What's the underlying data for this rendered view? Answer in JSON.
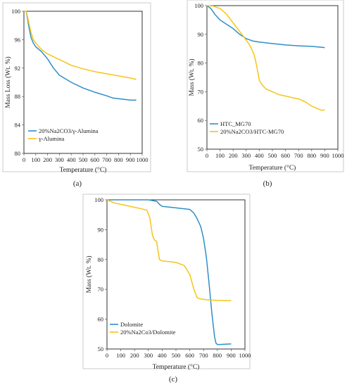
{
  "colors": {
    "blue": "#2e8fc9",
    "yellow": "#f5c518",
    "axis": "#000000",
    "tick": "#555555"
  },
  "chart_data": [
    {
      "type": "line",
      "panel_label": "(a)",
      "xlabel": "Temperature (°C)",
      "ylabel": "Mass Loss (Wt. %)",
      "xlim": [
        0,
        1000
      ],
      "ylim": [
        80,
        100
      ],
      "xticks": [
        0,
        100,
        200,
        300,
        400,
        500,
        600,
        700,
        800,
        900,
        1000
      ],
      "yticks": [
        80,
        84,
        88,
        92,
        96,
        100
      ],
      "grid": false,
      "legend": "bottom-left",
      "series": [
        {
          "name": "20%Na2CO3/γ-Alumina",
          "color": "#2e8fc9",
          "x": [
            0,
            20,
            40,
            60,
            80,
            100,
            150,
            200,
            250,
            300,
            400,
            500,
            600,
            700,
            750,
            800,
            850,
            900,
            950
          ],
          "y": [
            100,
            100,
            98.0,
            96.3,
            95.5,
            95.0,
            94.3,
            93.3,
            92.0,
            91.0,
            90.0,
            89.2,
            88.6,
            88.1,
            87.8,
            87.7,
            87.6,
            87.5,
            87.5
          ]
        },
        {
          "name": "γ-Alumina",
          "color": "#f5c518",
          "x": [
            0,
            20,
            40,
            60,
            80,
            100,
            150,
            200,
            300,
            400,
            500,
            600,
            700,
            800,
            900,
            950
          ],
          "y": [
            100,
            100,
            98.5,
            97.0,
            96.0,
            95.5,
            94.6,
            94.0,
            93.2,
            92.4,
            91.9,
            91.5,
            91.2,
            90.9,
            90.6,
            90.4
          ]
        }
      ]
    },
    {
      "type": "line",
      "panel_label": "(b)",
      "xlabel": "Temperature (°C)",
      "ylabel": "Mass (Wt. %)",
      "xlim": [
        0,
        1000
      ],
      "ylim": [
        50,
        100
      ],
      "xticks": [
        0,
        100,
        200,
        300,
        400,
        500,
        600,
        700,
        800,
        900,
        1000
      ],
      "yticks": [
        50,
        60,
        70,
        80,
        90,
        100
      ],
      "grid": false,
      "legend": "bottom-left",
      "series": [
        {
          "name": "HTC_MG70",
          "color": "#2e8fc9",
          "x": [
            0,
            30,
            60,
            100,
            150,
            200,
            250,
            300,
            350,
            400,
            500,
            600,
            700,
            800,
            900
          ],
          "y": [
            100,
            99.0,
            97.0,
            95.0,
            93.5,
            92.0,
            90.0,
            88.5,
            87.7,
            87.3,
            86.8,
            86.3,
            86.0,
            85.8,
            85.4
          ]
        },
        {
          "name": "20%Na2CO3/HTC-MG70",
          "color": "#f5c518",
          "x": [
            0,
            50,
            100,
            150,
            200,
            250,
            300,
            330,
            360,
            380,
            400,
            420,
            450,
            500,
            550,
            600,
            650,
            700,
            750,
            800,
            850,
            880,
            900
          ],
          "y": [
            100,
            99.8,
            99.0,
            97.0,
            94.0,
            91.0,
            88.0,
            86.0,
            83.0,
            79.0,
            74.0,
            72.5,
            71.0,
            70.0,
            69.0,
            68.5,
            68.0,
            67.5,
            66.5,
            65.0,
            64.0,
            63.5,
            63.7
          ]
        }
      ]
    },
    {
      "type": "line",
      "panel_label": "(c)",
      "xlabel": "Temperature (°C)",
      "ylabel": "Mass (Wt. %)",
      "xlim": [
        0,
        1000
      ],
      "ylim": [
        50,
        100
      ],
      "xticks": [
        0,
        100,
        200,
        300,
        400,
        500,
        600,
        700,
        800,
        900,
        1000
      ],
      "yticks": [
        50,
        60,
        70,
        80,
        90,
        100
      ],
      "grid": false,
      "legend": "bottom-left",
      "series": [
        {
          "name": "Dolomite",
          "color": "#2e8fc9",
          "x": [
            0,
            100,
            200,
            300,
            360,
            380,
            400,
            500,
            600,
            630,
            650,
            680,
            700,
            720,
            740,
            760,
            780,
            790,
            800,
            820,
            850,
            900
          ],
          "y": [
            100,
            100,
            100,
            100,
            99.5,
            98.5,
            97.8,
            97.3,
            96.8,
            95.5,
            94.0,
            91.0,
            87.0,
            81.0,
            72.0,
            62.0,
            54.0,
            52.0,
            51.5,
            51.5,
            51.6,
            51.7
          ]
        },
        {
          "name": "20%Na2Co3/Dolomite",
          "color": "#f5c518",
          "x": [
            0,
            50,
            100,
            150,
            200,
            250,
            290,
            310,
            330,
            345,
            360,
            370,
            380,
            400,
            450,
            500,
            560,
            600,
            630,
            650,
            660,
            680,
            720,
            800,
            900
          ],
          "y": [
            100,
            99.0,
            98.5,
            98.0,
            97.5,
            97.0,
            96.5,
            94.0,
            88.0,
            86.5,
            86.0,
            83.0,
            80.0,
            79.5,
            79.3,
            79.0,
            78.0,
            75.0,
            70.0,
            67.5,
            67.0,
            66.8,
            66.5,
            66.3,
            66.2
          ]
        }
      ]
    }
  ]
}
